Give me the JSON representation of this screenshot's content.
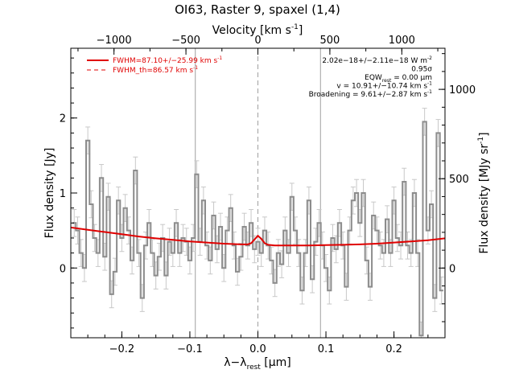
{
  "chart_data": {
    "type": "line",
    "title": "OI63, Raster 9, spaxel (1,4)",
    "xlabel": "λ−λ",
    "xlabel_sub": "rest",
    "xlabel_unit": "[μm]",
    "ylabel": "Flux density [Jy]",
    "x2label": "Velocity [km s",
    "x2label_sup": "-1",
    "x2label_end": "]",
    "y2label": "Flux density [MJy sr",
    "y2label_sup": "-1",
    "y2label_end": "]",
    "xlim": [
      -0.275,
      0.275
    ],
    "ylim": [
      -0.93,
      2.93
    ],
    "x2lim": [
      -1300,
      1300
    ],
    "y2lim": [
      -390,
      1230
    ],
    "x_ticks": [
      {
        "value": -0.2,
        "label": "−0.2"
      },
      {
        "value": -0.1,
        "label": "−0.1"
      },
      {
        "value": 0.0,
        "label": "0.0"
      },
      {
        "value": 0.1,
        "label": "0.1"
      },
      {
        "value": 0.2,
        "label": "0.2"
      }
    ],
    "y_ticks": [
      {
        "value": 0,
        "label": "0"
      },
      {
        "value": 1,
        "label": "1"
      },
      {
        "value": 2,
        "label": "2"
      }
    ],
    "x2_ticks": [
      {
        "value": -1000,
        "label": "−1000"
      },
      {
        "value": -500,
        "label": "−500"
      },
      {
        "value": 0,
        "label": "0"
      },
      {
        "value": 500,
        "label": "500"
      },
      {
        "value": 1000,
        "label": "1000"
      }
    ],
    "y2_ticks": [
      {
        "value": 0,
        "label": "0"
      },
      {
        "value": 500,
        "label": "500"
      },
      {
        "value": 1000,
        "label": "1000"
      }
    ],
    "vlines": [
      {
        "x": -0.092,
        "color": "#a0a0a0",
        "style": "solid"
      },
      {
        "x": 0.0,
        "color": "#a0a0a0",
        "style": "dashed"
      },
      {
        "x": 0.092,
        "color": "#a0a0a0",
        "style": "solid"
      }
    ],
    "legend": [
      {
        "label": "FWHM=87.10+/−25.99 km s",
        "sup": "-1",
        "style": "solid",
        "color": "#e00000"
      },
      {
        "label": "FWHM_th=86.57 km s",
        "sup": "-1",
        "style": "dashed",
        "color": "#e00000"
      }
    ],
    "annotations": [
      {
        "text": "2.02e−18+/−2.11e−18 W m",
        "sup": "-2"
      },
      {
        "text": "0.95σ",
        "sup": ""
      },
      {
        "text": "EQW",
        "sub": "rest",
        "tail": " = 0.00 μm"
      },
      {
        "text": "v = 10.91+/−10.74 km s",
        "sup": "-1"
      },
      {
        "text": "Broadening = 9.61+/−2.87 km s",
        "sup": "-1"
      }
    ],
    "data_color": "#8c8c8c",
    "fit_color": "#e00000",
    "series": [
      {
        "name": "data",
        "style": "steps",
        "x": [
          -0.27,
          -0.265,
          -0.26,
          -0.255,
          -0.25,
          -0.245,
          -0.24,
          -0.235,
          -0.23,
          -0.225,
          -0.22,
          -0.215,
          -0.21,
          -0.205,
          -0.2,
          -0.195,
          -0.19,
          -0.185,
          -0.18,
          -0.175,
          -0.17,
          -0.165,
          -0.16,
          -0.155,
          -0.15,
          -0.145,
          -0.14,
          -0.135,
          -0.13,
          -0.125,
          -0.12,
          -0.115,
          -0.11,
          -0.105,
          -0.1,
          -0.095,
          -0.09,
          -0.085,
          -0.08,
          -0.075,
          -0.07,
          -0.065,
          -0.06,
          -0.055,
          -0.05,
          -0.045,
          -0.04,
          -0.035,
          -0.03,
          -0.025,
          -0.02,
          -0.015,
          -0.01,
          -0.005,
          0.0,
          0.005,
          0.01,
          0.015,
          0.02,
          0.025,
          0.03,
          0.035,
          0.04,
          0.045,
          0.05,
          0.055,
          0.06,
          0.065,
          0.07,
          0.075,
          0.08,
          0.085,
          0.09,
          0.095,
          0.1,
          0.105,
          0.11,
          0.115,
          0.12,
          0.125,
          0.13,
          0.135,
          0.14,
          0.145,
          0.15,
          0.155,
          0.16,
          0.165,
          0.17,
          0.175,
          0.18,
          0.185,
          0.19,
          0.195,
          0.2,
          0.205,
          0.21,
          0.215,
          0.22,
          0.225,
          0.23,
          0.235,
          0.24,
          0.245,
          0.25,
          0.255,
          0.26,
          0.265,
          0.27
        ],
        "y": [
          0.6,
          0.5,
          0.2,
          0.0,
          1.7,
          0.85,
          0.4,
          0.2,
          1.2,
          0.15,
          0.95,
          -0.35,
          -0.05,
          0.9,
          0.4,
          0.8,
          0.5,
          0.1,
          1.3,
          0.2,
          -0.4,
          0.3,
          0.6,
          0.2,
          -0.1,
          0.15,
          0.4,
          -0.1,
          0.35,
          0.2,
          0.6,
          0.2,
          0.4,
          0.35,
          0.1,
          0.4,
          1.25,
          0.35,
          0.9,
          0.3,
          0.1,
          0.7,
          0.25,
          0.55,
          0.0,
          0.5,
          0.8,
          0.3,
          -0.05,
          0.15,
          0.55,
          0.3,
          0.6,
          0.25,
          0.35,
          0.2,
          0.5,
          0.3,
          0.1,
          -0.2,
          0.2,
          0.05,
          0.5,
          0.2,
          0.95,
          0.5,
          0.2,
          -0.3,
          0.2,
          0.9,
          -0.15,
          0.35,
          0.6,
          0.3,
          0.0,
          -0.3,
          0.4,
          0.25,
          0.6,
          0.3,
          -0.25,
          0.5,
          0.9,
          1.0,
          0.6,
          1.0,
          0.1,
          -0.25,
          0.7,
          0.5,
          0.3,
          0.2,
          0.65,
          0.2,
          0.9,
          0.4,
          0.3,
          1.15,
          0.3,
          0.2,
          1.0,
          0.2,
          -0.9,
          1.95,
          0.5,
          0.85,
          -0.4,
          1.8,
          -0.3
        ],
        "err": 0.18
      },
      {
        "name": "fit",
        "style": "line",
        "x": [
          -0.275,
          -0.25,
          -0.225,
          -0.2,
          -0.175,
          -0.15,
          -0.125,
          -0.1,
          -0.075,
          -0.05,
          -0.025,
          -0.015,
          -0.01,
          -0.005,
          0.0,
          0.005,
          0.01,
          0.015,
          0.025,
          0.05,
          0.075,
          0.1,
          0.125,
          0.15,
          0.175,
          0.2,
          0.225,
          0.25,
          0.275
        ],
        "y": [
          0.54,
          0.51,
          0.48,
          0.45,
          0.42,
          0.395,
          0.375,
          0.355,
          0.34,
          0.325,
          0.315,
          0.315,
          0.33,
          0.38,
          0.43,
          0.39,
          0.33,
          0.31,
          0.3,
          0.3,
          0.3,
          0.305,
          0.31,
          0.315,
          0.325,
          0.34,
          0.355,
          0.37,
          0.395
        ]
      }
    ]
  }
}
